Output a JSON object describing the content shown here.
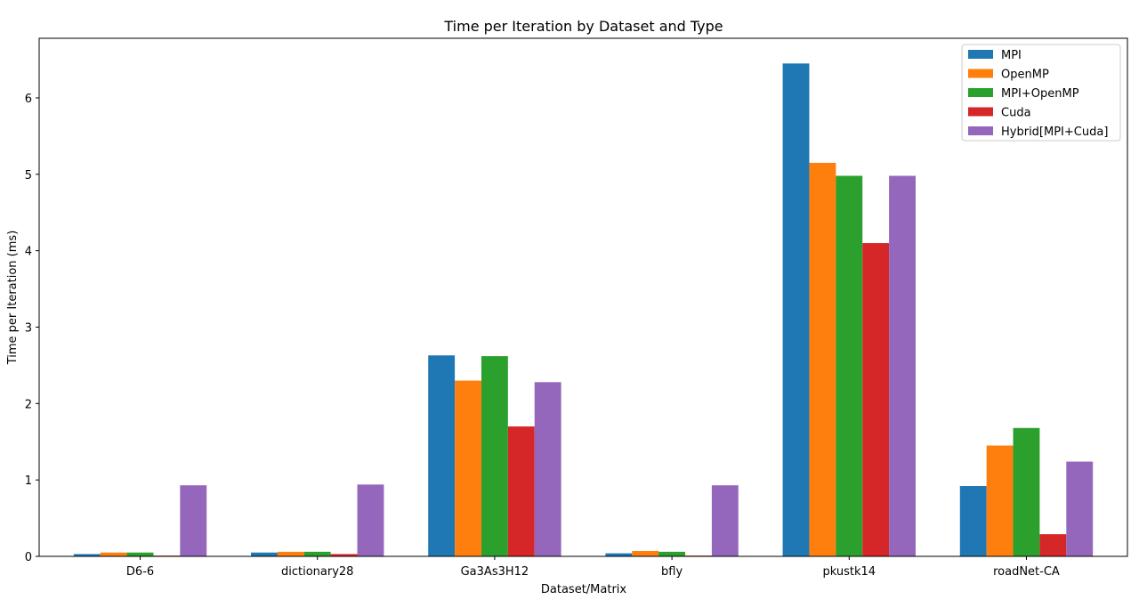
{
  "chart_data": {
    "type": "bar",
    "title": "Time per Iteration by Dataset and Type",
    "xlabel": "Dataset/Matrix",
    "ylabel": "Time per Iteration (ms)",
    "categories": [
      "D6-6",
      "dictionary28",
      "Ga3As3H12",
      "bfly",
      "pkustk14",
      "roadNet-CA"
    ],
    "series": [
      {
        "name": "MPI",
        "color": "#1f77b4",
        "values": [
          0.03,
          0.05,
          2.63,
          0.04,
          6.45,
          0.92
        ]
      },
      {
        "name": "OpenMP",
        "color": "#ff7f0e",
        "values": [
          0.05,
          0.06,
          2.3,
          0.07,
          5.15,
          1.45
        ]
      },
      {
        "name": "MPI+OpenMP",
        "color": "#2ca02c",
        "values": [
          0.05,
          0.06,
          2.62,
          0.06,
          4.98,
          1.68
        ]
      },
      {
        "name": "Cuda",
        "color": "#d62728",
        "values": [
          0.01,
          0.03,
          1.7,
          0.01,
          4.1,
          0.29
        ]
      },
      {
        "name": "Hybrid[MPI+Cuda]",
        "color": "#9467bd",
        "values": [
          0.93,
          0.94,
          2.28,
          0.93,
          4.98,
          1.24
        ]
      }
    ],
    "yticks": [
      0,
      1,
      2,
      3,
      4,
      5,
      6
    ],
    "ylim": [
      0,
      6.78
    ],
    "grid": false,
    "legend_position": "top-right"
  }
}
